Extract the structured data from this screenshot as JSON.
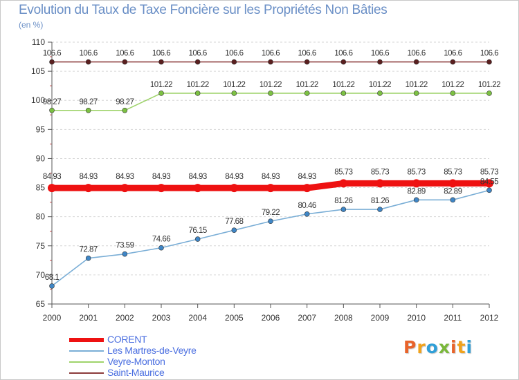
{
  "header": {
    "title": "Evolution du Taux de Taxe Foncière sur les Propriétés Non Bâties",
    "unit": "(en %)"
  },
  "brand": {
    "letters": [
      "P",
      "r",
      "o",
      "x",
      "i",
      "t",
      "i"
    ],
    "colors": [
      "#e8632a",
      "#f0a21c",
      "#2f9fd8",
      "#7ab83a",
      "#e8632a",
      "#f0a21c",
      "#2f9fd8"
    ]
  },
  "chart_data": {
    "type": "line",
    "title": "Evolution du Taux de Taxe Foncière sur les Propriétés Non Bâties",
    "ylabel": "(en %)",
    "xlabel": "",
    "ylim": [
      65,
      110
    ],
    "yticks": [
      65,
      70,
      75,
      80,
      85,
      90,
      95,
      100,
      105,
      110
    ],
    "grid": "horizontal dashed",
    "categories": [
      "2000",
      "2001",
      "2002",
      "2003",
      "2004",
      "2005",
      "2006",
      "2007",
      "2008",
      "2009",
      "2010",
      "2011",
      "2012"
    ],
    "series": [
      {
        "name": "Saint-Maurice",
        "color": "#8b3a3a",
        "marker": "#5a1f1f",
        "values": [
          106.6,
          106.6,
          106.6,
          106.6,
          106.6,
          106.6,
          106.6,
          106.6,
          106.6,
          106.6,
          106.6,
          106.6,
          106.6
        ],
        "labels": [
          "106.6",
          "106.6",
          "106.6",
          "106.6",
          "106.6",
          "106.6",
          "106.6",
          "106.6",
          "106.6",
          "106.6",
          "106.6",
          "106.6",
          "106.6"
        ]
      },
      {
        "name": "Veyre-Monton",
        "color": "#9ed36a",
        "marker": "#7cc142",
        "values": [
          98.27,
          98.27,
          98.27,
          101.22,
          101.22,
          101.22,
          101.22,
          101.22,
          101.22,
          101.22,
          101.22,
          101.22,
          101.22
        ],
        "labels": [
          "98.27",
          "98.27",
          "98.27",
          "101.22",
          "101.22",
          "101.22",
          "101.22",
          "101.22",
          "101.22",
          "101.22",
          "101.22",
          "101.22",
          "101.22"
        ]
      },
      {
        "name": "CORENT",
        "color": "#ee1111",
        "marker": "#ee1111",
        "values": [
          84.93,
          84.93,
          84.93,
          84.93,
          84.93,
          84.93,
          84.93,
          84.93,
          85.73,
          85.73,
          85.73,
          85.73,
          85.73
        ],
        "labels": [
          "84.93",
          "84.93",
          "84.93",
          "84.93",
          "84.93",
          "84.93",
          "84.93",
          "84.93",
          "85.73",
          "85.73",
          "85.73",
          "85.73",
          "85.73"
        ]
      },
      {
        "name": "Les Martres-de-Veyre",
        "color": "#7aaed6",
        "marker": "#3f86c6",
        "values": [
          68.1,
          72.87,
          73.59,
          74.66,
          76.15,
          77.68,
          79.22,
          80.46,
          81.26,
          81.26,
          82.89,
          82.89,
          84.55
        ],
        "labels": [
          "68.1",
          "72.87",
          "73.59",
          "74.66",
          "76.15",
          "77.68",
          "79.22",
          "80.46",
          "81.26",
          "81.26",
          "82.89",
          "82.89",
          "84.55"
        ]
      }
    ],
    "legend_order": [
      "CORENT",
      "Les Martres-de-Veyre",
      "Veyre-Monton",
      "Saint-Maurice"
    ]
  }
}
